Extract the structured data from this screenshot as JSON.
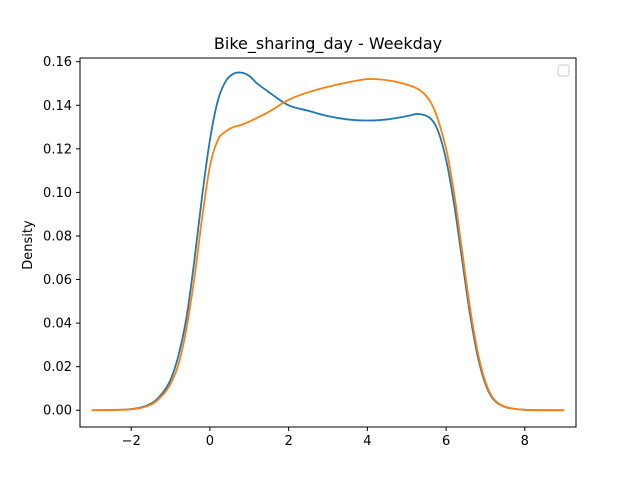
{
  "chart_data": {
    "type": "line",
    "title": "Bike_sharing_day - Weekday",
    "xlabel": "",
    "ylabel": "Density",
    "xlim": [
      -3.3,
      9.3
    ],
    "ylim": [
      -0.0077,
      0.1617
    ],
    "x_ticks": [
      -2,
      0,
      2,
      4,
      6,
      8
    ],
    "x_tick_labels": [
      "−2",
      "0",
      "2",
      "4",
      "6",
      "8"
    ],
    "y_ticks": [
      0.0,
      0.02,
      0.04,
      0.06,
      0.08,
      0.1,
      0.12,
      0.14,
      0.16
    ],
    "y_tick_labels": [
      "0.00",
      "0.02",
      "0.04",
      "0.06",
      "0.08",
      "0.10",
      "0.12",
      "0.14",
      "0.16"
    ],
    "grid": false,
    "legend": {
      "placement": "top-right",
      "entries": []
    },
    "series": [
      {
        "color": "#1f77b4",
        "x": [
          -3,
          -2,
          -1.5,
          -1.2,
          -1,
          -0.8,
          -0.6,
          -0.4,
          -0.2,
          0,
          0.2,
          0.4,
          0.6,
          0.8,
          1.0,
          1.2,
          1.5,
          2.0,
          2.5,
          3.0,
          3.5,
          4.0,
          4.5,
          5.0,
          5.3,
          5.6,
          5.8,
          6.0,
          6.2,
          6.4,
          6.6,
          6.8,
          7.0,
          7.2,
          7.5,
          8.0,
          9.0
        ],
        "y": [
          0.0,
          0.0005,
          0.003,
          0.008,
          0.014,
          0.025,
          0.042,
          0.068,
          0.098,
          0.124,
          0.142,
          0.151,
          0.1545,
          0.155,
          0.1535,
          0.15,
          0.146,
          0.14,
          0.1375,
          0.135,
          0.1335,
          0.133,
          0.1335,
          0.135,
          0.136,
          0.134,
          0.128,
          0.115,
          0.095,
          0.07,
          0.045,
          0.025,
          0.012,
          0.005,
          0.0015,
          0.0002,
          0.0
        ]
      },
      {
        "color": "#ff7f0e",
        "x": [
          -3,
          -2,
          -1.5,
          -1.2,
          -1,
          -0.8,
          -0.6,
          -0.4,
          -0.2,
          0,
          0.2,
          0.4,
          0.6,
          0.8,
          1.0,
          1.5,
          2.0,
          2.5,
          3.0,
          3.5,
          4.0,
          4.5,
          5.0,
          5.4,
          5.7,
          6.0,
          6.2,
          6.4,
          6.6,
          6.8,
          7.0,
          7.2,
          7.5,
          8.0,
          9.0
        ],
        "y": [
          0.0,
          0.0004,
          0.0025,
          0.007,
          0.012,
          0.021,
          0.037,
          0.06,
          0.088,
          0.112,
          0.124,
          0.128,
          0.13,
          0.131,
          0.1325,
          0.137,
          0.1425,
          0.146,
          0.1485,
          0.1505,
          0.152,
          0.1515,
          0.1495,
          0.146,
          0.138,
          0.12,
          0.1,
          0.074,
          0.048,
          0.027,
          0.013,
          0.0055,
          0.0016,
          0.0002,
          0.0
        ]
      }
    ]
  }
}
